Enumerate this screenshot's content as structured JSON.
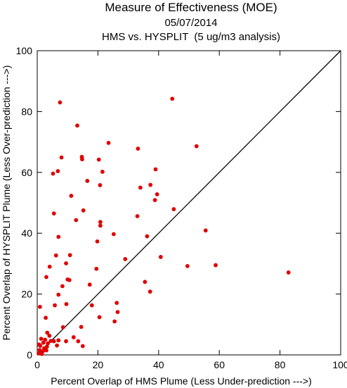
{
  "chart_data": {
    "type": "scatter",
    "title": "Measure of Effectiveness (MOE)",
    "subtitle_lines": [
      "05/07/2014",
      "HMS vs. HYSPLIT  (5 ug/m3 analysis)"
    ],
    "xlabel": "Percent Overlap of HMS Plume (Less Under-prediction --->)",
    "ylabel": "Percent Overlap of HYSPLIT Plume (Less Over-prediction --->)",
    "xlim": [
      0,
      100
    ],
    "ylim": [
      0,
      100
    ],
    "xticks": [
      0,
      20,
      40,
      60,
      80,
      100
    ],
    "yticks": [
      0,
      20,
      40,
      60,
      80,
      100
    ],
    "grid": false,
    "reference_line": {
      "from": [
        0,
        0
      ],
      "to": [
        100,
        100
      ]
    },
    "point_color": "#e00000",
    "points": [
      [
        0.5,
        0.5
      ],
      [
        0.8,
        1.6
      ],
      [
        1.0,
        3.0
      ],
      [
        1.5,
        0.3
      ],
      [
        1.8,
        1.2
      ],
      [
        2.0,
        4.0
      ],
      [
        2.3,
        2.2
      ],
      [
        2.6,
        5.0
      ],
      [
        3.0,
        1.5
      ],
      [
        3.2,
        2.7
      ],
      [
        3.5,
        3.8
      ],
      [
        0.6,
        3.4
      ],
      [
        1.3,
        5.3
      ],
      [
        2.8,
        12.2
      ],
      [
        3.3,
        7.3
      ],
      [
        4.0,
        6.3
      ],
      [
        4.5,
        4.6
      ],
      [
        5.5,
        4.5
      ],
      [
        6.5,
        3.1
      ],
      [
        7.0,
        4.8
      ],
      [
        8.5,
        9.1
      ],
      [
        9.5,
        4.5
      ],
      [
        0.9,
        15.8
      ],
      [
        5.8,
        16.3
      ],
      [
        7.0,
        19.8
      ],
      [
        8.3,
        22.6
      ],
      [
        9.6,
        16.7
      ],
      [
        10.0,
        24.8
      ],
      [
        10.6,
        24.6
      ],
      [
        12.0,
        5.8
      ],
      [
        13.5,
        4.5
      ],
      [
        15.0,
        2.9
      ],
      [
        14.5,
        9.2
      ],
      [
        18.0,
        16.3
      ],
      [
        17.3,
        23.1
      ],
      [
        20.5,
        12.4
      ],
      [
        25.5,
        11.0
      ],
      [
        26.5,
        14.1
      ],
      [
        26.2,
        17.1
      ],
      [
        29.0,
        31.5
      ],
      [
        3.0,
        25.6
      ],
      [
        4.1,
        29.0
      ],
      [
        6.2,
        32.7
      ],
      [
        9.5,
        30.1
      ],
      [
        10.8,
        32.8
      ],
      [
        19.5,
        28.3
      ],
      [
        19.8,
        37.3
      ],
      [
        7.0,
        38.8
      ],
      [
        5.5,
        46.5
      ],
      [
        12.8,
        44.3
      ],
      [
        15.2,
        47.5
      ],
      [
        20.8,
        42.5
      ],
      [
        20.8,
        43.7
      ],
      [
        25.2,
        39.7
      ],
      [
        5.2,
        59.6
      ],
      [
        6.8,
        60.4
      ],
      [
        8.0,
        64.9
      ],
      [
        11.2,
        52.3
      ],
      [
        14.7,
        65.1
      ],
      [
        14.8,
        64.3
      ],
      [
        16.5,
        57.2
      ],
      [
        20.3,
        64.2
      ],
      [
        20.7,
        55.8
      ],
      [
        21.5,
        60.2
      ],
      [
        23.5,
        69.7
      ],
      [
        7.5,
        83.0
      ],
      [
        13.2,
        75.4
      ],
      [
        33.0,
        45.6
      ],
      [
        33.2,
        67.8
      ],
      [
        34.0,
        55.0
      ],
      [
        35.5,
        24.0
      ],
      [
        36.2,
        39.0
      ],
      [
        37.2,
        20.8
      ],
      [
        37.3,
        55.9
      ],
      [
        38.8,
        50.9
      ],
      [
        39.0,
        61.0
      ],
      [
        39.5,
        52.8
      ],
      [
        40.7,
        32.2
      ],
      [
        45.0,
        47.9
      ],
      [
        44.5,
        84.2
      ],
      [
        49.5,
        29.2
      ],
      [
        52.5,
        68.6
      ],
      [
        55.5,
        40.9
      ],
      [
        58.8,
        29.5
      ],
      [
        82.8,
        27.1
      ]
    ]
  }
}
